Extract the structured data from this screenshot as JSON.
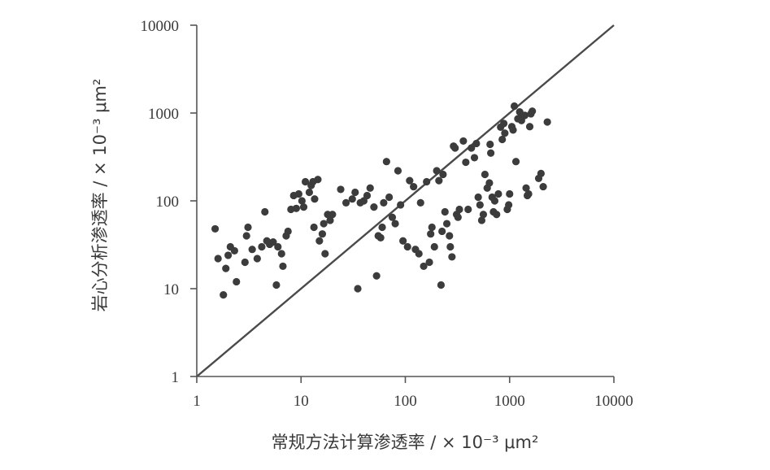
{
  "chart_data": {
    "type": "scatter",
    "title": "",
    "xlabel": "常规方法计算渗透率 / × 10⁻³ μm²",
    "ylabel": "岩心分析渗透率 / × 10⁻³ μm²",
    "xscale": "log",
    "yscale": "log",
    "xlim": [
      1,
      10000
    ],
    "ylim": [
      1,
      10000
    ],
    "xticks": [
      "1",
      "10",
      "100",
      "1000",
      "10000"
    ],
    "yticks": [
      "1",
      "10",
      "100",
      "1000",
      "10000"
    ],
    "grid": false,
    "legend": "none",
    "reference_line": {
      "label": "",
      "x": [
        1,
        10000
      ],
      "y": [
        1,
        10000
      ]
    },
    "colors": {
      "points": "#3c3c3c",
      "line": "#4a4a4a",
      "axis": "#555555"
    },
    "points": [
      [
        1.5,
        48
      ],
      [
        1.6,
        22
      ],
      [
        1.8,
        8.5
      ],
      [
        1.9,
        17
      ],
      [
        2.0,
        24
      ],
      [
        2.1,
        30
      ],
      [
        2.3,
        27
      ],
      [
        2.4,
        12
      ],
      [
        2.9,
        20
      ],
      [
        3.0,
        40
      ],
      [
        3.1,
        50
      ],
      [
        3.4,
        28
      ],
      [
        3.8,
        22
      ],
      [
        4.2,
        30
      ],
      [
        4.5,
        75
      ],
      [
        4.7,
        35
      ],
      [
        5.0,
        32
      ],
      [
        5.4,
        34
      ],
      [
        5.8,
        11
      ],
      [
        6.0,
        30
      ],
      [
        6.5,
        25
      ],
      [
        6.7,
        18
      ],
      [
        7.2,
        40
      ],
      [
        7.5,
        45
      ],
      [
        8.0,
        80
      ],
      [
        8.5,
        115
      ],
      [
        9.0,
        82
      ],
      [
        9.5,
        120
      ],
      [
        10.2,
        100
      ],
      [
        10.6,
        85
      ],
      [
        11,
        165
      ],
      [
        12,
        125
      ],
      [
        12.5,
        150
      ],
      [
        13,
        165
      ],
      [
        13.3,
        50
      ],
      [
        13.5,
        105
      ],
      [
        14.5,
        175
      ],
      [
        15,
        35
      ],
      [
        16,
        42
      ],
      [
        16.5,
        55
      ],
      [
        17,
        25
      ],
      [
        18,
        70
      ],
      [
        19,
        60
      ],
      [
        20,
        70
      ],
      [
        24,
        135
      ],
      [
        27,
        95
      ],
      [
        31,
        105
      ],
      [
        33,
        125
      ],
      [
        35,
        10
      ],
      [
        37,
        95
      ],
      [
        40,
        100
      ],
      [
        43,
        115
      ],
      [
        46,
        140
      ],
      [
        50,
        85
      ],
      [
        53,
        14
      ],
      [
        55,
        40
      ],
      [
        58,
        38
      ],
      [
        60,
        50
      ],
      [
        62,
        95
      ],
      [
        66,
        280
      ],
      [
        70,
        110
      ],
      [
        75,
        65
      ],
      [
        80,
        55
      ],
      [
        85,
        220
      ],
      [
        90,
        90
      ],
      [
        95,
        35
      ],
      [
        105,
        30
      ],
      [
        110,
        170
      ],
      [
        120,
        145
      ],
      [
        125,
        28
      ],
      [
        135,
        25
      ],
      [
        140,
        95
      ],
      [
        150,
        18
      ],
      [
        160,
        165
      ],
      [
        170,
        20
      ],
      [
        175,
        42
      ],
      [
        180,
        50
      ],
      [
        190,
        30
      ],
      [
        200,
        220
      ],
      [
        210,
        170
      ],
      [
        220,
        11
      ],
      [
        225,
        45
      ],
      [
        230,
        200
      ],
      [
        240,
        75
      ],
      [
        250,
        55
      ],
      [
        265,
        40
      ],
      [
        270,
        30
      ],
      [
        280,
        23
      ],
      [
        290,
        420
      ],
      [
        300,
        400
      ],
      [
        310,
        70
      ],
      [
        320,
        65
      ],
      [
        330,
        80
      ],
      [
        360,
        480
      ],
      [
        380,
        275
      ],
      [
        400,
        80
      ],
      [
        430,
        400
      ],
      [
        460,
        310
      ],
      [
        480,
        450
      ],
      [
        500,
        110
      ],
      [
        520,
        90
      ],
      [
        540,
        60
      ],
      [
        560,
        70
      ],
      [
        580,
        200
      ],
      [
        610,
        140
      ],
      [
        640,
        160
      ],
      [
        650,
        440
      ],
      [
        660,
        350
      ],
      [
        680,
        110
      ],
      [
        700,
        75
      ],
      [
        720,
        100
      ],
      [
        750,
        70
      ],
      [
        780,
        120
      ],
      [
        820,
        690
      ],
      [
        850,
        500
      ],
      [
        880,
        760
      ],
      [
        900,
        590
      ],
      [
        950,
        80
      ],
      [
        980,
        90
      ],
      [
        1000,
        120
      ],
      [
        1050,
        700
      ],
      [
        1080,
        640
      ],
      [
        1110,
        1200
      ],
      [
        1150,
        280
      ],
      [
        1200,
        860
      ],
      [
        1250,
        1030
      ],
      [
        1300,
        820
      ],
      [
        1350,
        920
      ],
      [
        1400,
        940
      ],
      [
        1440,
        140
      ],
      [
        1480,
        115
      ],
      [
        1520,
        120
      ],
      [
        1560,
        700
      ],
      [
        1600,
        980
      ],
      [
        1650,
        1050
      ],
      [
        1900,
        180
      ],
      [
        2000,
        205
      ],
      [
        2100,
        145
      ],
      [
        2300,
        790
      ]
    ]
  }
}
